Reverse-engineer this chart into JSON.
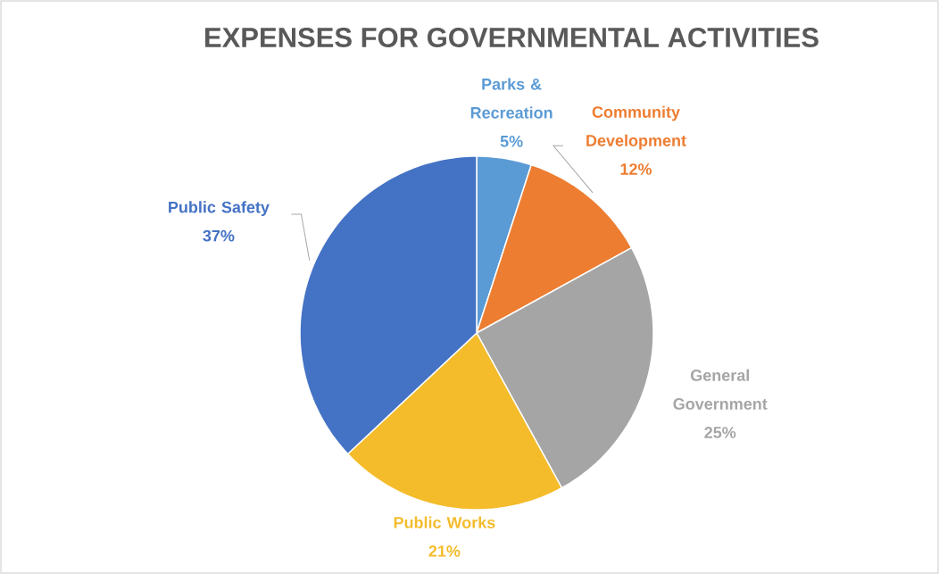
{
  "chart_data": {
    "type": "pie",
    "title": "EXPENSES FOR GOVERNMENTAL ACTIVITIES",
    "categories": [
      "Parks & Recreation",
      "Community Development",
      "General Government",
      "Public Works",
      "Public Safety"
    ],
    "values": [
      5,
      12,
      25,
      21,
      37
    ],
    "colors": [
      "#5b9bd5",
      "#ed7d31",
      "#a5a5a5",
      "#f4bc2b",
      "#4472c4"
    ],
    "value_labels": [
      "5%",
      "12%",
      "25%",
      "21%",
      "37%"
    ]
  }
}
